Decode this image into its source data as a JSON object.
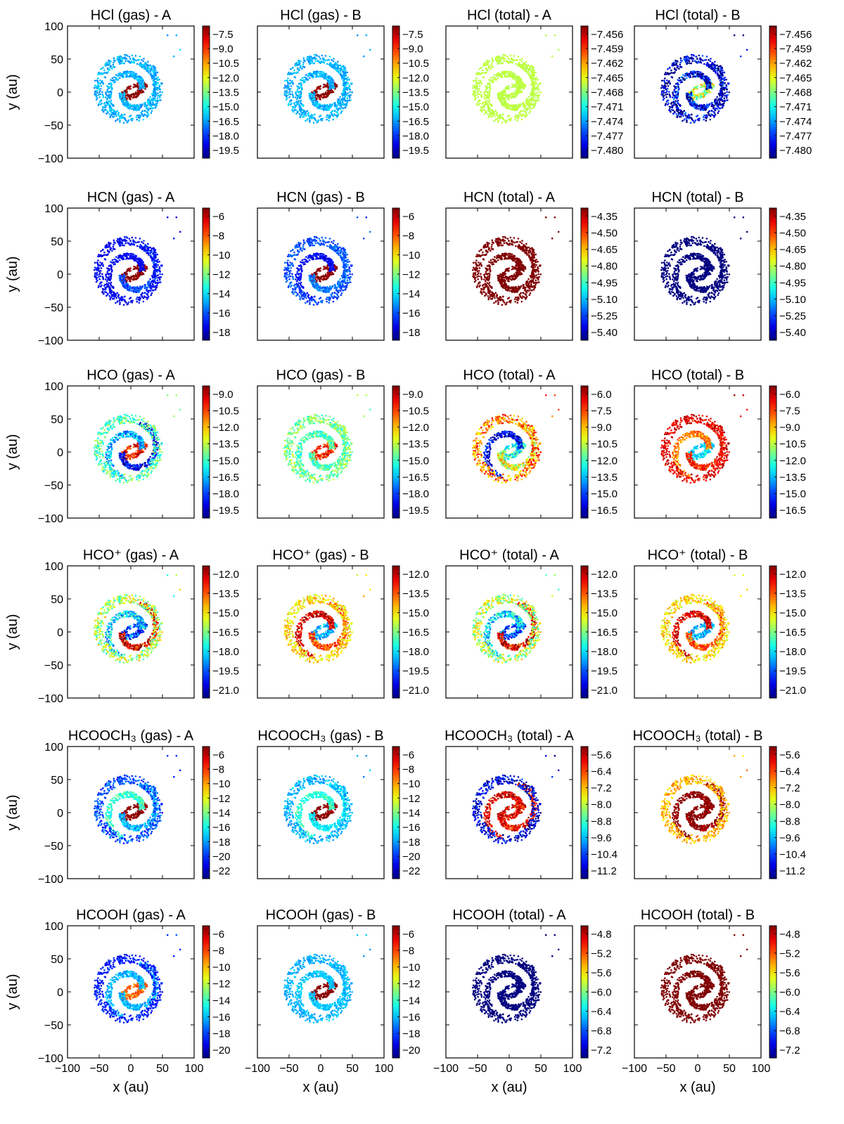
{
  "figure": {
    "xlabel": "x (au)",
    "ylabel": "y (au)",
    "xticks": [
      "−100",
      "−50",
      "0",
      "50",
      "100"
    ],
    "yticks": [
      "100",
      "50",
      "0",
      "−50",
      "−100"
    ],
    "suffix_a": " -  A",
    "suffix_b": " -  B"
  },
  "chart_data": [
    {
      "type": "scatter",
      "title": "HCl (gas) -  A",
      "xlabel": "x (au)",
      "ylabel": "y (au)",
      "xlim": [
        -100,
        100
      ],
      "ylim": [
        -100,
        100
      ],
      "colorbar_ticks": [
        "−7.5",
        "−9.0",
        "−10.5",
        "−12.0",
        "−13.5",
        "−15.0",
        "−16.5",
        "−18.0",
        "−19.5"
      ],
      "pattern": {
        "inner": 1.0,
        "armA": 0.3,
        "armB": 0.3,
        "outer": 0.3,
        "noise": 0.05
      }
    },
    {
      "type": "scatter",
      "title": "HCl (gas) -  B",
      "xlabel": "x (au)",
      "ylabel": "y (au)",
      "xlim": [
        -100,
        100
      ],
      "ylim": [
        -100,
        100
      ],
      "colorbar_ticks": [
        "−7.5",
        "−9.0",
        "−10.5",
        "−12.0",
        "−13.5",
        "−15.0",
        "−16.5",
        "−18.0",
        "−19.5"
      ],
      "pattern": {
        "inner": 1.0,
        "armA": 0.3,
        "armB": 0.3,
        "outer": 0.3,
        "noise": 0.05
      }
    },
    {
      "type": "scatter",
      "title": "HCl (total) -  A",
      "xlabel": "x (au)",
      "ylabel": "y (au)",
      "xlim": [
        -100,
        100
      ],
      "ylim": [
        -100,
        100
      ],
      "colorbar_ticks": [
        "−7.456",
        "−7.459",
        "−7.462",
        "−7.465",
        "−7.468",
        "−7.471",
        "−7.474",
        "−7.477",
        "−7.480"
      ],
      "pattern": {
        "inner": 0.56,
        "armA": 0.56,
        "armB": 0.56,
        "outer": 0.56,
        "noise": 0.01
      }
    },
    {
      "type": "scatter",
      "title": "HCl (total) -  B",
      "xlabel": "x (au)",
      "ylabel": "y (au)",
      "xlim": [
        -100,
        100
      ],
      "ylim": [
        -100,
        100
      ],
      "colorbar_ticks": [
        "−7.456",
        "−7.459",
        "−7.462",
        "−7.465",
        "−7.468",
        "−7.471",
        "−7.474",
        "−7.477",
        "−7.480"
      ],
      "pattern": {
        "inner": 0.56,
        "armA": 0.1,
        "armB": 0.1,
        "outer": 0.05,
        "noise": 0.18
      }
    },
    {
      "type": "scatter",
      "title": "HCN (gas) -  A",
      "xlabel": "x (au)",
      "ylabel": "y (au)",
      "xlim": [
        -100,
        100
      ],
      "ylim": [
        -100,
        100
      ],
      "colorbar_ticks": [
        "−6",
        "−8",
        "−10",
        "−12",
        "−14",
        "−16",
        "−18"
      ],
      "pattern": {
        "inner": 1.0,
        "armA": 0.12,
        "armB": 0.2,
        "outer": 0.12,
        "noise": 0.05
      }
    },
    {
      "type": "scatter",
      "title": "HCN (gas) -  B",
      "xlabel": "x (au)",
      "ylabel": "y (au)",
      "xlim": [
        -100,
        100
      ],
      "ylim": [
        -100,
        100
      ],
      "colorbar_ticks": [
        "−6",
        "−8",
        "−10",
        "−12",
        "−14",
        "−16",
        "−18"
      ],
      "pattern": {
        "inner": 1.0,
        "armA": 0.12,
        "armB": 0.24,
        "outer": 0.2,
        "noise": 0.05
      }
    },
    {
      "type": "scatter",
      "title": "HCN (total) -  A",
      "xlabel": "x (au)",
      "ylabel": "y (au)",
      "xlim": [
        -100,
        100
      ],
      "ylim": [
        -100,
        100
      ],
      "colorbar_ticks": [
        "−4.35",
        "−4.50",
        "−4.65",
        "−4.80",
        "−4.95",
        "−5.10",
        "−5.25",
        "−5.40"
      ],
      "pattern": {
        "inner": 1.0,
        "armA": 1.0,
        "armB": 1.0,
        "outer": 1.0,
        "noise": 0.0
      }
    },
    {
      "type": "scatter",
      "title": "HCN (total) -  B",
      "xlabel": "x (au)",
      "ylabel": "y (au)",
      "xlim": [
        -100,
        100
      ],
      "ylim": [
        -100,
        100
      ],
      "colorbar_ticks": [
        "−4.35",
        "−4.50",
        "−4.65",
        "−4.80",
        "−4.95",
        "−5.10",
        "−5.25",
        "−5.40"
      ],
      "pattern": {
        "inner": 0.0,
        "armA": 0.0,
        "armB": 0.0,
        "outer": 0.0,
        "noise": 0.0
      }
    },
    {
      "type": "scatter",
      "title": "HCO (gas) -  A",
      "xlabel": "x (au)",
      "ylabel": "y (au)",
      "xlim": [
        -100,
        100
      ],
      "ylim": [
        -100,
        100
      ],
      "colorbar_ticks": [
        "−9.0",
        "−10.5",
        "−12.0",
        "−13.5",
        "−15.0",
        "−16.5",
        "−18.0",
        "−19.5"
      ],
      "pattern": {
        "inner": 0.85,
        "armA": 0.3,
        "armB": 0.1,
        "outer": 0.45,
        "noise": 0.12
      }
    },
    {
      "type": "scatter",
      "title": "HCO (gas) -  B",
      "xlabel": "x (au)",
      "ylabel": "y (au)",
      "xlim": [
        -100,
        100
      ],
      "ylim": [
        -100,
        100
      ],
      "colorbar_ticks": [
        "−9.0",
        "−10.5",
        "−12.0",
        "−13.5",
        "−15.0",
        "−16.5",
        "−18.0",
        "−19.5"
      ],
      "pattern": {
        "inner": 0.85,
        "armA": 0.45,
        "armB": 0.45,
        "outer": 0.5,
        "noise": 0.1
      }
    },
    {
      "type": "scatter",
      "title": "HCO (total) -  A",
      "xlabel": "x (au)",
      "ylabel": "y (au)",
      "xlim": [
        -100,
        100
      ],
      "ylim": [
        -100,
        100
      ],
      "colorbar_ticks": [
        "−6.0",
        "−7.5",
        "−9.0",
        "−10.5",
        "−12.0",
        "−13.5",
        "−15.0",
        "−16.5"
      ],
      "pattern": {
        "inner": 0.4,
        "armA": 0.12,
        "armB": 0.6,
        "outer": 0.75,
        "noise": 0.15
      }
    },
    {
      "type": "scatter",
      "title": "HCO (total) -  B",
      "xlabel": "x (au)",
      "ylabel": "y (au)",
      "xlim": [
        -100,
        100
      ],
      "ylim": [
        -100,
        100
      ],
      "colorbar_ticks": [
        "−6.0",
        "−7.5",
        "−9.0",
        "−10.5",
        "−12.0",
        "−13.5",
        "−15.0",
        "−16.5"
      ],
      "pattern": {
        "inner": 0.35,
        "armA": 0.75,
        "armB": 0.85,
        "outer": 0.9,
        "noise": 0.08
      }
    },
    {
      "type": "scatter",
      "title": "HCO⁺ (gas) -  A",
      "xlabel": "x (au)",
      "ylabel": "y (au)",
      "xlim": [
        -100,
        100
      ],
      "ylim": [
        -100,
        100
      ],
      "colorbar_ticks": [
        "−12.0",
        "−13.5",
        "−15.0",
        "−16.5",
        "−18.0",
        "−19.5",
        "−21.0"
      ],
      "pattern": {
        "inner": 0.2,
        "armA": 0.35,
        "armB": 0.9,
        "outer": 0.55,
        "noise": 0.15
      }
    },
    {
      "type": "scatter",
      "title": "HCO⁺ (gas) -  B",
      "xlabel": "x (au)",
      "ylabel": "y (au)",
      "xlim": [
        -100,
        100
      ],
      "ylim": [
        -100,
        100
      ],
      "colorbar_ticks": [
        "−12.0",
        "−13.5",
        "−15.0",
        "−16.5",
        "−18.0",
        "−19.5",
        "−21.0"
      ],
      "pattern": {
        "inner": 0.3,
        "armA": 0.9,
        "armB": 0.8,
        "outer": 0.65,
        "noise": 0.1
      }
    },
    {
      "type": "scatter",
      "title": "HCO⁺ (total) -  A",
      "xlabel": "x (au)",
      "ylabel": "y (au)",
      "xlim": [
        -100,
        100
      ],
      "ylim": [
        -100,
        100
      ],
      "colorbar_ticks": [
        "−12.0",
        "−13.5",
        "−15.0",
        "−16.5",
        "−18.0",
        "−19.5",
        "−21.0"
      ],
      "pattern": {
        "inner": 0.2,
        "armA": 0.35,
        "armB": 0.9,
        "outer": 0.55,
        "noise": 0.15
      }
    },
    {
      "type": "scatter",
      "title": "HCO⁺ (total) -  B",
      "xlabel": "x (au)",
      "ylabel": "y (au)",
      "xlim": [
        -100,
        100
      ],
      "ylim": [
        -100,
        100
      ],
      "colorbar_ticks": [
        "−12.0",
        "−13.5",
        "−15.0",
        "−16.5",
        "−18.0",
        "−19.5",
        "−21.0"
      ],
      "pattern": {
        "inner": 0.3,
        "armA": 0.9,
        "armB": 0.8,
        "outer": 0.65,
        "noise": 0.1
      }
    },
    {
      "type": "scatter",
      "title": "HCOOCH₃ (gas) -  A",
      "xlabel": "x (au)",
      "ylabel": "y (au)",
      "xlim": [
        -100,
        100
      ],
      "ylim": [
        -100,
        100
      ],
      "colorbar_ticks": [
        "−6",
        "−8",
        "−10",
        "−12",
        "−14",
        "−16",
        "−18",
        "−20",
        "−22"
      ],
      "pattern": {
        "inner": 1.0,
        "armA": 0.42,
        "armB": 0.3,
        "outer": 0.2,
        "noise": 0.08
      }
    },
    {
      "type": "scatter",
      "title": "HCOOCH₃ (gas) -  B",
      "xlabel": "x (au)",
      "ylabel": "y (au)",
      "xlim": [
        -100,
        100
      ],
      "ylim": [
        -100,
        100
      ],
      "colorbar_ticks": [
        "−6",
        "−8",
        "−10",
        "−12",
        "−14",
        "−16",
        "−18",
        "−20",
        "−22"
      ],
      "pattern": {
        "inner": 1.0,
        "armA": 0.42,
        "armB": 0.36,
        "outer": 0.3,
        "noise": 0.06
      }
    },
    {
      "type": "scatter",
      "title": "HCOOCH₃ (total) -  A",
      "xlabel": "x (au)",
      "ylabel": "y (au)",
      "xlim": [
        -100,
        100
      ],
      "ylim": [
        -100,
        100
      ],
      "colorbar_ticks": [
        "−5.6",
        "−6.4",
        "−7.2",
        "−8.0",
        "−8.8",
        "−9.6",
        "−10.4",
        "−11.2"
      ],
      "pattern": {
        "inner": 0.88,
        "armA": 0.88,
        "armB": 0.88,
        "outer": 0.1,
        "noise": 0.12
      }
    },
    {
      "type": "scatter",
      "title": "HCOOCH₃ (total) -  B",
      "xlabel": "x (au)",
      "ylabel": "y (au)",
      "xlim": [
        -100,
        100
      ],
      "ylim": [
        -100,
        100
      ],
      "colorbar_ticks": [
        "−5.6",
        "−6.4",
        "−7.2",
        "−8.0",
        "−8.8",
        "−9.6",
        "−10.4",
        "−11.2"
      ],
      "pattern": {
        "inner": 1.0,
        "armA": 1.0,
        "armB": 1.0,
        "outer": 0.7,
        "noise": 0.08
      }
    },
    {
      "type": "scatter",
      "title": "HCOOH (gas) -  A",
      "xlabel": "x (au)",
      "ylabel": "y (au)",
      "xlim": [
        -100,
        100
      ],
      "ylim": [
        -100,
        100
      ],
      "colorbar_ticks": [
        "−6",
        "−8",
        "−10",
        "−12",
        "−14",
        "−16",
        "−18",
        "−20"
      ],
      "pattern": {
        "inner": 0.78,
        "armA": 0.3,
        "armB": 0.3,
        "outer": 0.15,
        "noise": 0.06
      }
    },
    {
      "type": "scatter",
      "title": "HCOOH (gas) -  B",
      "xlabel": "x (au)",
      "ylabel": "y (au)",
      "xlim": [
        -100,
        100
      ],
      "ylim": [
        -100,
        100
      ],
      "colorbar_ticks": [
        "−6",
        "−8",
        "−10",
        "−12",
        "−14",
        "−16",
        "−18",
        "−20"
      ],
      "pattern": {
        "inner": 1.0,
        "armA": 0.32,
        "armB": 0.32,
        "outer": 0.3,
        "noise": 0.04
      }
    },
    {
      "type": "scatter",
      "title": "HCOOH (total) -  A",
      "xlabel": "x (au)",
      "ylabel": "y (au)",
      "xlim": [
        -100,
        100
      ],
      "ylim": [
        -100,
        100
      ],
      "colorbar_ticks": [
        "−4.8",
        "−5.2",
        "−5.6",
        "−6.0",
        "−6.4",
        "−6.8",
        "−7.2"
      ],
      "pattern": {
        "inner": 0.0,
        "armA": 0.0,
        "armB": 0.0,
        "outer": 0.0,
        "noise": 0.0
      }
    },
    {
      "type": "scatter",
      "title": "HCOOH (total) -  B",
      "xlabel": "x (au)",
      "ylabel": "y (au)",
      "xlim": [
        -100,
        100
      ],
      "ylim": [
        -100,
        100
      ],
      "colorbar_ticks": [
        "−4.8",
        "−5.2",
        "−5.6",
        "−6.0",
        "−6.4",
        "−6.8",
        "−7.2"
      ],
      "pattern": {
        "inner": 1.0,
        "armA": 1.0,
        "armB": 1.0,
        "outer": 1.0,
        "noise": 0.0
      }
    }
  ]
}
